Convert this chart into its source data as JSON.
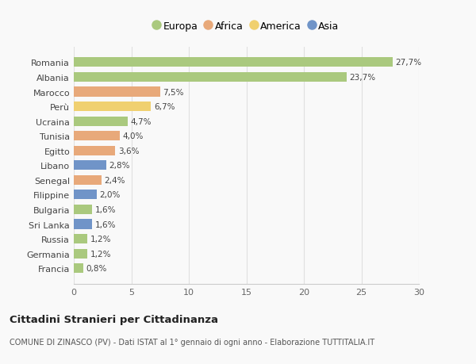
{
  "categories": [
    "Romania",
    "Albania",
    "Marocco",
    "Perù",
    "Ucraina",
    "Tunisia",
    "Egitto",
    "Libano",
    "Senegal",
    "Filippine",
    "Bulgaria",
    "Sri Lanka",
    "Russia",
    "Germania",
    "Francia"
  ],
  "values": [
    27.7,
    23.7,
    7.5,
    6.7,
    4.7,
    4.0,
    3.6,
    2.8,
    2.4,
    2.0,
    1.6,
    1.6,
    1.2,
    1.2,
    0.8
  ],
  "labels": [
    "27,7%",
    "23,7%",
    "7,5%",
    "6,7%",
    "4,7%",
    "4,0%",
    "3,6%",
    "2,8%",
    "2,4%",
    "2,0%",
    "1,6%",
    "1,6%",
    "1,2%",
    "1,2%",
    "0,8%"
  ],
  "continents": [
    "Europa",
    "Europa",
    "Africa",
    "America",
    "Europa",
    "Africa",
    "Africa",
    "Asia",
    "Africa",
    "Asia",
    "Europa",
    "Asia",
    "Europa",
    "Europa",
    "Europa"
  ],
  "colors": {
    "Europa": "#aac97e",
    "Africa": "#e8a97a",
    "America": "#f0d070",
    "Asia": "#7094c8"
  },
  "legend_order": [
    "Europa",
    "Africa",
    "America",
    "Asia"
  ],
  "title": "Cittadini Stranieri per Cittadinanza",
  "subtitle": "COMUNE DI ZINASCO (PV) - Dati ISTAT al 1° gennaio di ogni anno - Elaborazione TUTTITALIA.IT",
  "xlim": [
    0,
    30
  ],
  "xticks": [
    0,
    5,
    10,
    15,
    20,
    25,
    30
  ],
  "background_color": "#f9f9f9",
  "grid_color": "#e0e0e0"
}
